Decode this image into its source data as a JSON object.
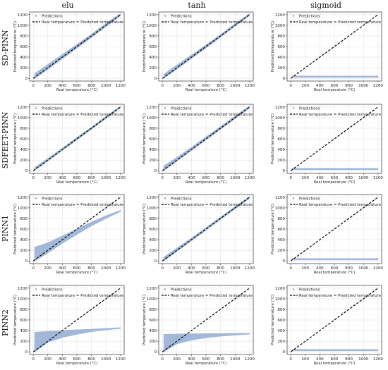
{
  "figure": {
    "columns": [
      "elu",
      "tanh",
      "sigmoid"
    ],
    "rows": [
      "SD-PINN",
      "SDFEET-PINN",
      "PINN1",
      "PINN2"
    ]
  },
  "colors": {
    "prediction_band": "#9db5d8",
    "ideal_line": "#000000",
    "grid": "#e3e3e3",
    "axes": "#333333"
  },
  "chart_data": {
    "type": "scatter",
    "xlabel": "Real temperature (°C)",
    "ylabel": "Predicted temperature (°C)",
    "xlim": [
      -50,
      1250
    ],
    "ylim": [
      -50,
      1250
    ],
    "xticks": [
      0,
      200,
      400,
      600,
      800,
      1000,
      1200
    ],
    "yticks": [
      0,
      200,
      400,
      600,
      800,
      1000,
      1200
    ],
    "grid": true,
    "legend": {
      "position": "top-left",
      "entries": [
        "Predictions",
        "Real temperature = Predicted temperature"
      ]
    },
    "ideal_line": {
      "x": [
        0,
        1200
      ],
      "y": [
        0,
        1200
      ]
    },
    "panels": [
      {
        "row": "SD-PINN",
        "activation": "elu",
        "predictions_band": {
          "x": [
            20,
            200,
            400,
            600,
            800,
            1000,
            1200
          ],
          "lower": [
            0,
            170,
            370,
            570,
            770,
            975,
            1180
          ],
          "upper": [
            90,
            260,
            450,
            640,
            830,
            1035,
            1220
          ]
        }
      },
      {
        "row": "SD-PINN",
        "activation": "tanh",
        "predictions_band": {
          "x": [
            20,
            200,
            400,
            600,
            800,
            1000,
            1200
          ],
          "lower": [
            0,
            175,
            375,
            575,
            775,
            985,
            1185
          ],
          "upper": [
            80,
            250,
            440,
            630,
            825,
            1030,
            1220
          ]
        }
      },
      {
        "row": "SD-PINN",
        "activation": "sigmoid",
        "predictions_band": {
          "x": [
            20,
            1200
          ],
          "lower": [
            20,
            20
          ],
          "upper": [
            45,
            45
          ]
        }
      },
      {
        "row": "SDFEET-PINN",
        "activation": "elu",
        "predictions_band": {
          "x": [
            20,
            200,
            400,
            600,
            800,
            1000,
            1200
          ],
          "lower": [
            10,
            180,
            380,
            580,
            780,
            985,
            1185
          ],
          "upper": [
            60,
            230,
            425,
            625,
            820,
            1025,
            1215
          ]
        }
      },
      {
        "row": "SDFEET-PINN",
        "activation": "tanh",
        "predictions_band": {
          "x": [
            20,
            200,
            400,
            600,
            800,
            1000,
            1200
          ],
          "lower": [
            0,
            180,
            380,
            580,
            780,
            980,
            1180
          ],
          "upper": [
            90,
            250,
            440,
            635,
            830,
            1030,
            1220
          ]
        }
      },
      {
        "row": "SDFEET-PINN",
        "activation": "sigmoid",
        "predictions_band": {
          "x": [
            20,
            1200
          ],
          "lower": [
            20,
            20
          ],
          "upper": [
            45,
            45
          ]
        }
      },
      {
        "row": "PINN1",
        "activation": "elu",
        "predictions_band": {
          "x": [
            20,
            200,
            400,
            600,
            800,
            1000,
            1200
          ],
          "lower": [
            0,
            150,
            330,
            500,
            660,
            800,
            930
          ],
          "upper": [
            260,
            340,
            470,
            600,
            730,
            850,
            950
          ]
        }
      },
      {
        "row": "PINN1",
        "activation": "tanh",
        "predictions_band": {
          "x": [
            20,
            200,
            400,
            600,
            800,
            1000,
            1200
          ],
          "lower": [
            0,
            180,
            380,
            580,
            780,
            980,
            1180
          ],
          "upper": [
            70,
            240,
            430,
            625,
            825,
            1020,
            1215
          ]
        }
      },
      {
        "row": "PINN1",
        "activation": "sigmoid",
        "predictions_band": {
          "x": [
            20,
            1200
          ],
          "lower": [
            20,
            20
          ],
          "upper": [
            45,
            45
          ]
        }
      },
      {
        "row": "PINN2",
        "activation": "elu",
        "predictions_band": {
          "x": [
            20,
            200,
            400,
            600,
            800,
            1000,
            1200
          ],
          "lower": [
            0,
            180,
            270,
            330,
            380,
            415,
            440
          ],
          "upper": [
            370,
            385,
            400,
            415,
            425,
            440,
            455
          ]
        }
      },
      {
        "row": "PINN2",
        "activation": "tanh",
        "predictions_band": {
          "x": [
            20,
            200,
            400,
            600,
            800,
            1000,
            1200
          ],
          "lower": [
            0,
            150,
            220,
            265,
            295,
            315,
            335
          ],
          "upper": [
            330,
            335,
            340,
            343,
            345,
            347,
            350
          ]
        }
      },
      {
        "row": "PINN2",
        "activation": "sigmoid",
        "predictions_band": {
          "x": [
            20,
            1200
          ],
          "lower": [
            20,
            20
          ],
          "upper": [
            45,
            45
          ]
        }
      }
    ]
  }
}
